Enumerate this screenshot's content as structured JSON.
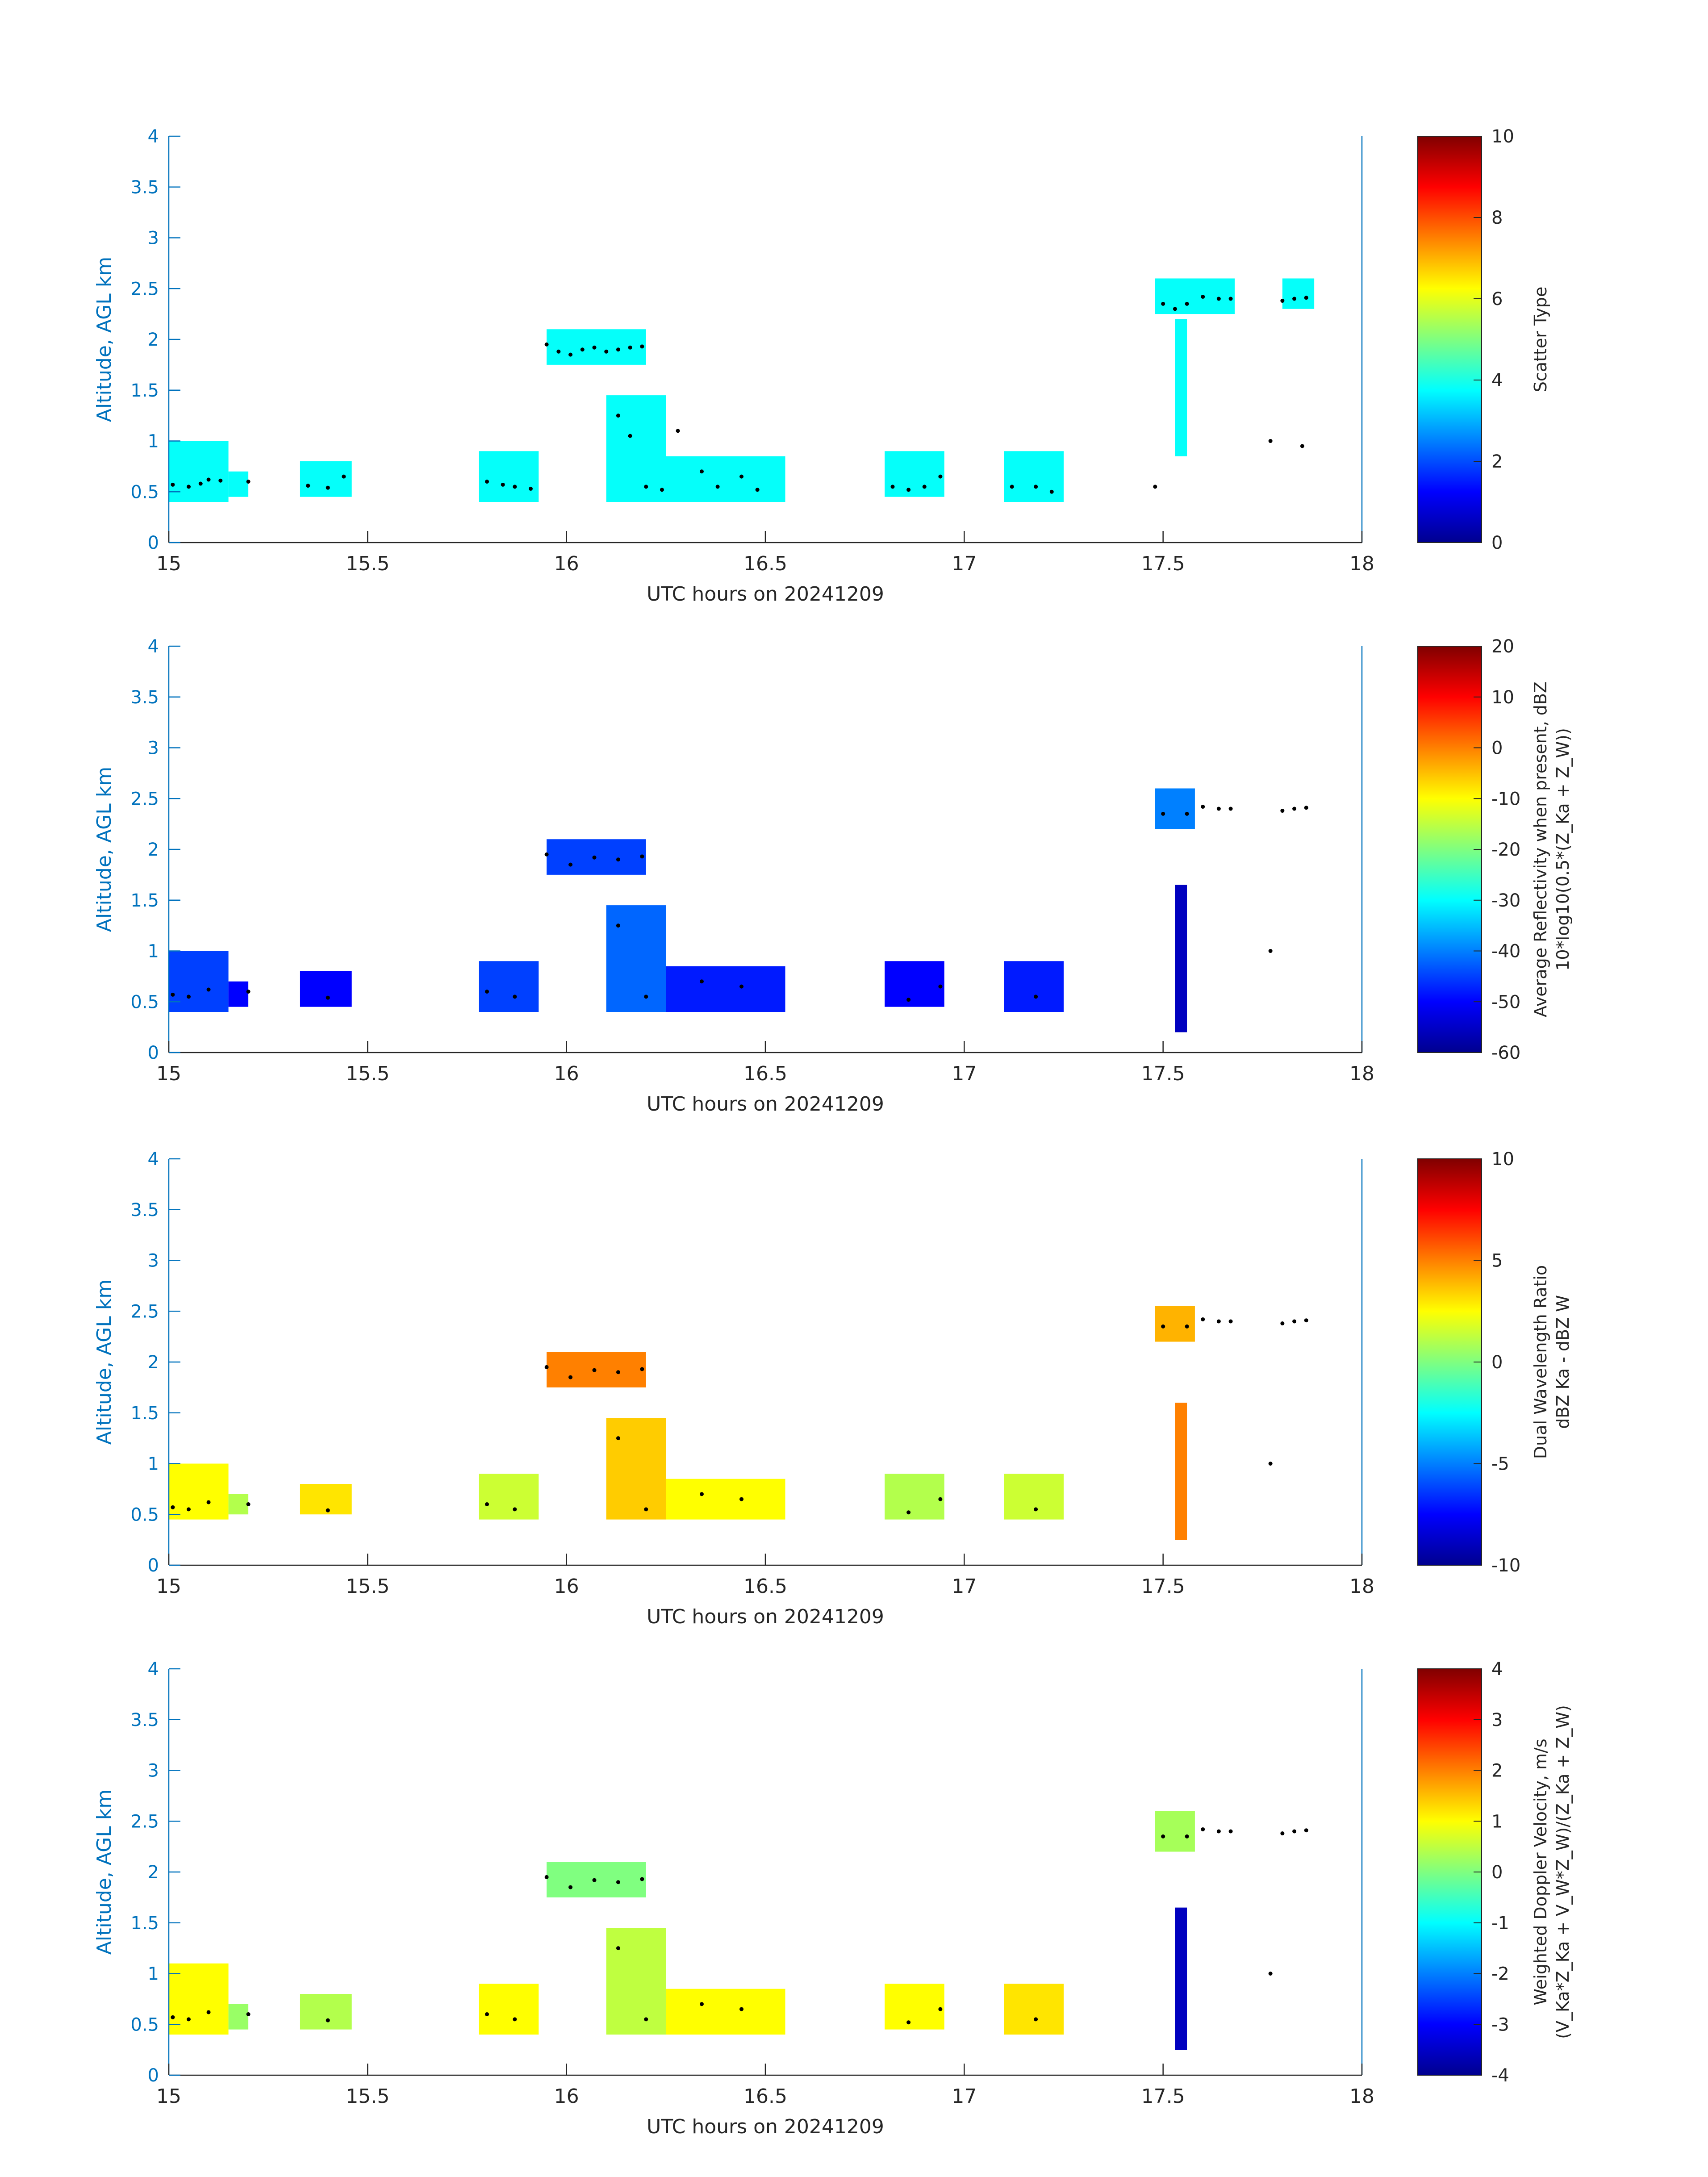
{
  "colors": {
    "axis_blue": "#0072BD",
    "tick_text": "#262626",
    "scatter_cyan": "#2EFFD0",
    "scatter_red": "#FF4A1A"
  },
  "chart_data": [
    {
      "type": "heatmap",
      "panel": "scatter-type",
      "xlabel": "UTC hours on 20241209",
      "ylabel": "Altitude, AGL km",
      "xlim": [
        15,
        18
      ],
      "ylim": [
        0,
        4
      ],
      "xticks": [
        "15",
        "15.5",
        "16",
        "16.5",
        "17",
        "17.5",
        "18"
      ],
      "yticks": [
        "0",
        "0.5",
        "1",
        "1.5",
        "2",
        "2.5",
        "3",
        "3.5",
        "4"
      ],
      "colorbar": {
        "label_lines": [
          "Scatter Type"
        ],
        "range": [
          0,
          10
        ],
        "ticks": [
          "0",
          "2",
          "4",
          "6",
          "8",
          "10"
        ]
      },
      "cloud_cells": [
        {
          "t0": 15.0,
          "t1": 15.15,
          "z0": 0.4,
          "z1": 1.0,
          "v": 3.8
        },
        {
          "t0": 15.15,
          "t1": 15.2,
          "z0": 0.45,
          "z1": 0.7,
          "v": 3.8
        },
        {
          "t0": 15.33,
          "t1": 15.46,
          "z0": 0.45,
          "z1": 0.8,
          "v": 3.8
        },
        {
          "t0": 15.78,
          "t1": 15.93,
          "z0": 0.4,
          "z1": 0.9,
          "v": 3.8
        },
        {
          "t0": 15.95,
          "t1": 16.2,
          "z0": 1.75,
          "z1": 2.1,
          "v": 3.8
        },
        {
          "t0": 16.1,
          "t1": 16.25,
          "z0": 0.4,
          "z1": 1.45,
          "v": 3.8
        },
        {
          "t0": 16.25,
          "t1": 16.55,
          "z0": 0.4,
          "z1": 0.85,
          "v": 3.8
        },
        {
          "t0": 16.8,
          "t1": 16.95,
          "z0": 0.45,
          "z1": 0.9,
          "v": 3.8
        },
        {
          "t0": 17.1,
          "t1": 17.25,
          "z0": 0.4,
          "z1": 0.9,
          "v": 3.8
        },
        {
          "t0": 17.48,
          "t1": 17.68,
          "z0": 2.25,
          "z1": 2.6,
          "v": 3.8
        },
        {
          "t0": 17.53,
          "t1": 17.56,
          "z0": 0.85,
          "z1": 2.2,
          "v": 3.8
        },
        {
          "t0": 17.8,
          "t1": 17.88,
          "z0": 2.3,
          "z1": 2.6,
          "v": 3.8
        }
      ],
      "cloud_top_dots": [
        {
          "t": 15.01,
          "z": 0.57
        },
        {
          "t": 15.05,
          "z": 0.55
        },
        {
          "t": 15.08,
          "z": 0.58
        },
        {
          "t": 15.1,
          "z": 0.62
        },
        {
          "t": 15.13,
          "z": 0.61
        },
        {
          "t": 15.2,
          "z": 0.6
        },
        {
          "t": 15.35,
          "z": 0.56
        },
        {
          "t": 15.4,
          "z": 0.54
        },
        {
          "t": 15.44,
          "z": 0.65
        },
        {
          "t": 15.8,
          "z": 0.6
        },
        {
          "t": 15.84,
          "z": 0.57
        },
        {
          "t": 15.87,
          "z": 0.55
        },
        {
          "t": 15.91,
          "z": 0.53
        },
        {
          "t": 15.95,
          "z": 1.95
        },
        {
          "t": 15.98,
          "z": 1.88
        },
        {
          "t": 16.01,
          "z": 1.85
        },
        {
          "t": 16.04,
          "z": 1.9
        },
        {
          "t": 16.07,
          "z": 1.92
        },
        {
          "t": 16.1,
          "z": 1.88
        },
        {
          "t": 16.13,
          "z": 1.9
        },
        {
          "t": 16.16,
          "z": 1.92
        },
        {
          "t": 16.19,
          "z": 1.93
        },
        {
          "t": 16.13,
          "z": 1.25
        },
        {
          "t": 16.16,
          "z": 1.05
        },
        {
          "t": 16.2,
          "z": 0.55
        },
        {
          "t": 16.24,
          "z": 0.52
        },
        {
          "t": 16.28,
          "z": 1.1
        },
        {
          "t": 16.34,
          "z": 0.7
        },
        {
          "t": 16.38,
          "z": 0.55
        },
        {
          "t": 16.44,
          "z": 0.65
        },
        {
          "t": 16.48,
          "z": 0.52
        },
        {
          "t": 16.82,
          "z": 0.55
        },
        {
          "t": 16.86,
          "z": 0.52
        },
        {
          "t": 16.9,
          "z": 0.55
        },
        {
          "t": 16.94,
          "z": 0.65
        },
        {
          "t": 17.12,
          "z": 0.55
        },
        {
          "t": 17.18,
          "z": 0.55
        },
        {
          "t": 17.22,
          "z": 0.5
        },
        {
          "t": 17.48,
          "z": 0.55
        },
        {
          "t": 17.5,
          "z": 2.35
        },
        {
          "t": 17.53,
          "z": 2.3
        },
        {
          "t": 17.56,
          "z": 2.35
        },
        {
          "t": 17.6,
          "z": 2.42
        },
        {
          "t": 17.64,
          "z": 2.4
        },
        {
          "t": 17.67,
          "z": 2.4
        },
        {
          "t": 17.8,
          "z": 2.38
        },
        {
          "t": 17.83,
          "z": 2.4
        },
        {
          "t": 17.86,
          "z": 2.41
        },
        {
          "t": 17.77,
          "z": 1.0
        },
        {
          "t": 17.85,
          "z": 0.95
        }
      ]
    },
    {
      "type": "heatmap",
      "panel": "reflectivity",
      "xlabel": "UTC hours on 20241209",
      "ylabel": "Altitude, AGL km",
      "xlim": [
        15,
        18
      ],
      "ylim": [
        0,
        4
      ],
      "xticks": [
        "15",
        "15.5",
        "16",
        "16.5",
        "17",
        "17.5",
        "18"
      ],
      "yticks": [
        "0",
        "0.5",
        "1",
        "1.5",
        "2",
        "2.5",
        "3",
        "3.5",
        "4"
      ],
      "colorbar": {
        "label_lines": [
          "Average Reflectivity when present, dBZ",
          "10*log10(0.5*(Z_Ka + Z_W))"
        ],
        "range": [
          -60,
          20
        ],
        "ticks": [
          "-60",
          "-50",
          "-40",
          "-30",
          "-20",
          "-10",
          "0",
          "10",
          "20"
        ]
      },
      "cloud_cells": [
        {
          "t0": 15.0,
          "t1": 15.15,
          "z0": 0.4,
          "z1": 1.0,
          "v": -45
        },
        {
          "t0": 15.15,
          "t1": 15.2,
          "z0": 0.45,
          "z1": 0.7,
          "v": -50
        },
        {
          "t0": 15.33,
          "t1": 15.46,
          "z0": 0.45,
          "z1": 0.8,
          "v": -50
        },
        {
          "t0": 15.78,
          "t1": 15.93,
          "z0": 0.4,
          "z1": 0.9,
          "v": -45
        },
        {
          "t0": 15.95,
          "t1": 16.2,
          "z0": 1.75,
          "z1": 2.1,
          "v": -45
        },
        {
          "t0": 16.1,
          "t1": 16.25,
          "z0": 0.4,
          "z1": 1.45,
          "v": -42
        },
        {
          "t0": 16.25,
          "t1": 16.55,
          "z0": 0.4,
          "z1": 0.85,
          "v": -48
        },
        {
          "t0": 16.8,
          "t1": 16.95,
          "z0": 0.45,
          "z1": 0.9,
          "v": -50
        },
        {
          "t0": 17.1,
          "t1": 17.25,
          "z0": 0.4,
          "z1": 0.9,
          "v": -48
        },
        {
          "t0": 17.48,
          "t1": 17.58,
          "z0": 2.2,
          "z1": 2.6,
          "v": -40
        },
        {
          "t0": 17.53,
          "t1": 17.56,
          "z0": 0.2,
          "z1": 1.65,
          "v": -55
        }
      ],
      "cloud_top_dots": [
        {
          "t": 15.01,
          "z": 0.57
        },
        {
          "t": 15.05,
          "z": 0.55
        },
        {
          "t": 15.1,
          "z": 0.62
        },
        {
          "t": 15.2,
          "z": 0.6
        },
        {
          "t": 15.4,
          "z": 0.54
        },
        {
          "t": 15.8,
          "z": 0.6
        },
        {
          "t": 15.87,
          "z": 0.55
        },
        {
          "t": 15.95,
          "z": 1.95
        },
        {
          "t": 16.01,
          "z": 1.85
        },
        {
          "t": 16.07,
          "z": 1.92
        },
        {
          "t": 16.13,
          "z": 1.9
        },
        {
          "t": 16.19,
          "z": 1.93
        },
        {
          "t": 16.13,
          "z": 1.25
        },
        {
          "t": 16.2,
          "z": 0.55
        },
        {
          "t": 16.34,
          "z": 0.7
        },
        {
          "t": 16.44,
          "z": 0.65
        },
        {
          "t": 16.86,
          "z": 0.52
        },
        {
          "t": 16.94,
          "z": 0.65
        },
        {
          "t": 17.18,
          "z": 0.55
        },
        {
          "t": 17.5,
          "z": 2.35
        },
        {
          "t": 17.56,
          "z": 2.35
        },
        {
          "t": 17.6,
          "z": 2.42
        },
        {
          "t": 17.64,
          "z": 2.4
        },
        {
          "t": 17.67,
          "z": 2.4
        },
        {
          "t": 17.8,
          "z": 2.38
        },
        {
          "t": 17.83,
          "z": 2.4
        },
        {
          "t": 17.86,
          "z": 2.41
        },
        {
          "t": 17.77,
          "z": 1.0
        }
      ]
    },
    {
      "type": "heatmap",
      "panel": "dual-wavelength-ratio",
      "xlabel": "UTC hours on 20241209",
      "ylabel": "Altitude, AGL km",
      "xlim": [
        15,
        18
      ],
      "ylim": [
        0,
        4
      ],
      "xticks": [
        "15",
        "15.5",
        "16",
        "16.5",
        "17",
        "17.5",
        "18"
      ],
      "yticks": [
        "0",
        "0.5",
        "1",
        "1.5",
        "2",
        "2.5",
        "3",
        "3.5",
        "4"
      ],
      "colorbar": {
        "label_lines": [
          "Dual Wavelength Ratio",
          "dBZ Ka - dBZ W"
        ],
        "range": [
          -10,
          10
        ],
        "ticks": [
          "-10",
          "-5",
          "0",
          "5",
          "10"
        ]
      },
      "cloud_cells": [
        {
          "t0": 15.0,
          "t1": 15.15,
          "z0": 0.45,
          "z1": 1.0,
          "v": 2.5
        },
        {
          "t0": 15.15,
          "t1": 15.2,
          "z0": 0.5,
          "z1": 0.7,
          "v": 1.0
        },
        {
          "t0": 15.33,
          "t1": 15.46,
          "z0": 0.5,
          "z1": 0.8,
          "v": 3.0
        },
        {
          "t0": 15.78,
          "t1": 15.93,
          "z0": 0.45,
          "z1": 0.9,
          "v": 1.5
        },
        {
          "t0": 15.95,
          "t1": 16.2,
          "z0": 1.75,
          "z1": 2.1,
          "v": 5.0
        },
        {
          "t0": 16.1,
          "t1": 16.25,
          "z0": 0.45,
          "z1": 1.45,
          "v": 3.5
        },
        {
          "t0": 16.25,
          "t1": 16.55,
          "z0": 0.45,
          "z1": 0.85,
          "v": 2.5
        },
        {
          "t0": 16.8,
          "t1": 16.95,
          "z0": 0.45,
          "z1": 0.9,
          "v": 1.0
        },
        {
          "t0": 17.1,
          "t1": 17.25,
          "z0": 0.45,
          "z1": 0.9,
          "v": 1.5
        },
        {
          "t0": 17.48,
          "t1": 17.58,
          "z0": 2.2,
          "z1": 2.55,
          "v": 4.0
        },
        {
          "t0": 17.53,
          "t1": 17.56,
          "z0": 0.25,
          "z1": 1.6,
          "v": 5.0
        }
      ],
      "cloud_top_dots": [
        {
          "t": 15.01,
          "z": 0.57
        },
        {
          "t": 15.05,
          "z": 0.55
        },
        {
          "t": 15.1,
          "z": 0.62
        },
        {
          "t": 15.2,
          "z": 0.6
        },
        {
          "t": 15.4,
          "z": 0.54
        },
        {
          "t": 15.8,
          "z": 0.6
        },
        {
          "t": 15.87,
          "z": 0.55
        },
        {
          "t": 15.95,
          "z": 1.95
        },
        {
          "t": 16.01,
          "z": 1.85
        },
        {
          "t": 16.07,
          "z": 1.92
        },
        {
          "t": 16.13,
          "z": 1.9
        },
        {
          "t": 16.19,
          "z": 1.93
        },
        {
          "t": 16.13,
          "z": 1.25
        },
        {
          "t": 16.2,
          "z": 0.55
        },
        {
          "t": 16.34,
          "z": 0.7
        },
        {
          "t": 16.44,
          "z": 0.65
        },
        {
          "t": 16.86,
          "z": 0.52
        },
        {
          "t": 16.94,
          "z": 0.65
        },
        {
          "t": 17.18,
          "z": 0.55
        },
        {
          "t": 17.5,
          "z": 2.35
        },
        {
          "t": 17.56,
          "z": 2.35
        },
        {
          "t": 17.6,
          "z": 2.42
        },
        {
          "t": 17.64,
          "z": 2.4
        },
        {
          "t": 17.67,
          "z": 2.4
        },
        {
          "t": 17.8,
          "z": 2.38
        },
        {
          "t": 17.83,
          "z": 2.4
        },
        {
          "t": 17.86,
          "z": 2.41
        },
        {
          "t": 17.77,
          "z": 1.0
        }
      ]
    },
    {
      "type": "heatmap",
      "panel": "doppler-velocity",
      "xlabel": "UTC hours on 20241209",
      "ylabel": "Altitude, AGL km",
      "xlim": [
        15,
        18
      ],
      "ylim": [
        0,
        4
      ],
      "xticks": [
        "15",
        "15.5",
        "16",
        "16.5",
        "17",
        "17.5",
        "18"
      ],
      "yticks": [
        "0",
        "0.5",
        "1",
        "1.5",
        "2",
        "2.5",
        "3",
        "3.5",
        "4"
      ],
      "colorbar": {
        "label_lines": [
          "Weighted Doppler Velocity, m/s",
          "(V_Ka*Z_Ka + V_W*Z_W)/(Z_Ka + Z_W)"
        ],
        "range": [
          -4,
          4
        ],
        "ticks": [
          "-4",
          "-3",
          "-2",
          "-1",
          "0",
          "1",
          "2",
          "3",
          "4"
        ]
      },
      "cloud_cells": [
        {
          "t0": 15.0,
          "t1": 15.15,
          "z0": 0.4,
          "z1": 1.1,
          "v": 1.0
        },
        {
          "t0": 15.15,
          "t1": 15.2,
          "z0": 0.45,
          "z1": 0.7,
          "v": 0.2
        },
        {
          "t0": 15.33,
          "t1": 15.46,
          "z0": 0.45,
          "z1": 0.8,
          "v": 0.4
        },
        {
          "t0": 15.78,
          "t1": 15.93,
          "z0": 0.4,
          "z1": 0.9,
          "v": 1.0
        },
        {
          "t0": 15.95,
          "t1": 16.2,
          "z0": 1.75,
          "z1": 2.1,
          "v": 0.0
        },
        {
          "t0": 16.1,
          "t1": 16.25,
          "z0": 0.4,
          "z1": 1.45,
          "v": 0.5
        },
        {
          "t0": 16.25,
          "t1": 16.55,
          "z0": 0.4,
          "z1": 0.85,
          "v": 1.0
        },
        {
          "t0": 16.8,
          "t1": 16.95,
          "z0": 0.45,
          "z1": 0.9,
          "v": 1.0
        },
        {
          "t0": 17.1,
          "t1": 17.25,
          "z0": 0.4,
          "z1": 0.9,
          "v": 1.2
        },
        {
          "t0": 17.48,
          "t1": 17.58,
          "z0": 2.2,
          "z1": 2.6,
          "v": 0.3
        },
        {
          "t0": 17.53,
          "t1": 17.56,
          "z0": 0.25,
          "z1": 1.65,
          "v": -3.5
        }
      ],
      "cloud_top_dots": [
        {
          "t": 15.01,
          "z": 0.57
        },
        {
          "t": 15.05,
          "z": 0.55
        },
        {
          "t": 15.1,
          "z": 0.62
        },
        {
          "t": 15.2,
          "z": 0.6
        },
        {
          "t": 15.4,
          "z": 0.54
        },
        {
          "t": 15.8,
          "z": 0.6
        },
        {
          "t": 15.87,
          "z": 0.55
        },
        {
          "t": 15.95,
          "z": 1.95
        },
        {
          "t": 16.01,
          "z": 1.85
        },
        {
          "t": 16.07,
          "z": 1.92
        },
        {
          "t": 16.13,
          "z": 1.9
        },
        {
          "t": 16.19,
          "z": 1.93
        },
        {
          "t": 16.13,
          "z": 1.25
        },
        {
          "t": 16.2,
          "z": 0.55
        },
        {
          "t": 16.34,
          "z": 0.7
        },
        {
          "t": 16.44,
          "z": 0.65
        },
        {
          "t": 16.86,
          "z": 0.52
        },
        {
          "t": 16.94,
          "z": 0.65
        },
        {
          "t": 17.18,
          "z": 0.55
        },
        {
          "t": 17.5,
          "z": 2.35
        },
        {
          "t": 17.56,
          "z": 2.35
        },
        {
          "t": 17.6,
          "z": 2.42
        },
        {
          "t": 17.64,
          "z": 2.4
        },
        {
          "t": 17.67,
          "z": 2.4
        },
        {
          "t": 17.8,
          "z": 2.38
        },
        {
          "t": 17.83,
          "z": 2.4
        },
        {
          "t": 17.86,
          "z": 2.41
        },
        {
          "t": 17.77,
          "z": 1.0
        }
      ]
    }
  ]
}
